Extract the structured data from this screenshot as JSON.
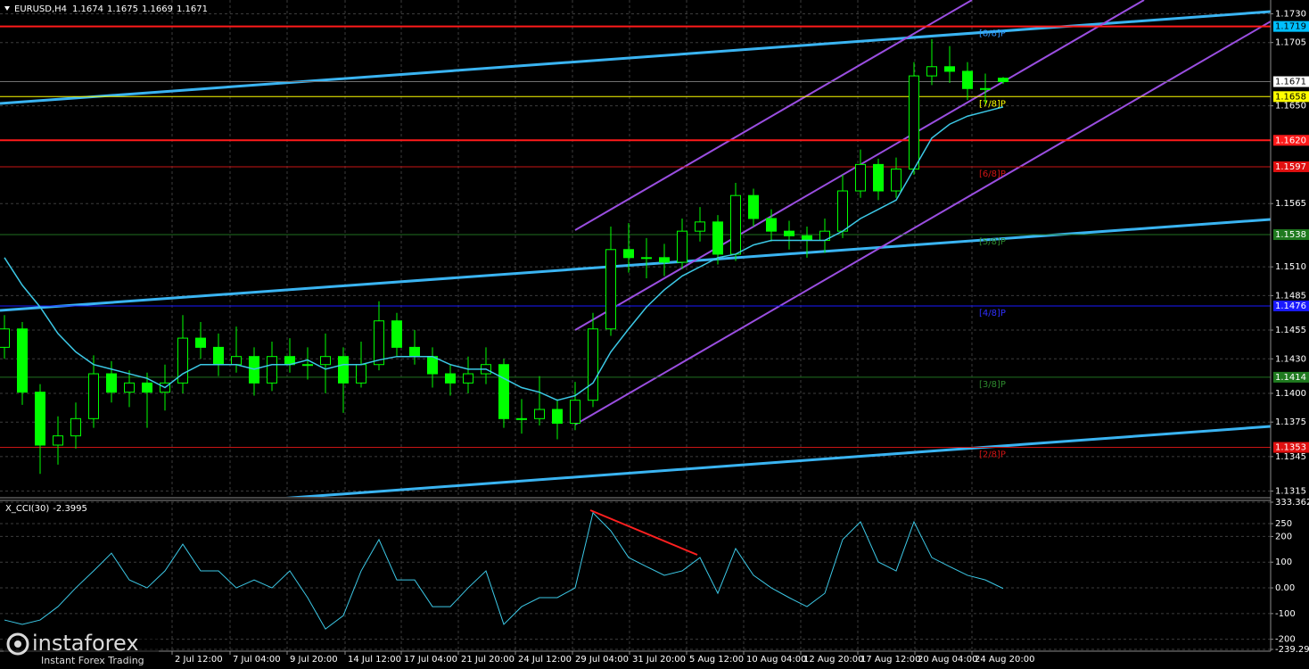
{
  "chart_data": [
    {
      "type": "candlestick",
      "title": "EURUSD,H4",
      "header_values": [
        1.1674,
        1.1675,
        1.1669,
        1.1671
      ],
      "xlim": [
        -0.25,
        71
      ],
      "ylim": [
        1.131,
        1.1742
      ],
      "yticks": [
        {
          "value": 1.173,
          "label": "1.1730"
        },
        1.1705,
        {
          "value": 1.165,
          "label": "1.1650"
        },
        1.1565,
        {
          "value": 1.151,
          "label": "1.1510"
        },
        1.1485,
        1.1455,
        {
          "value": 1.143,
          "label": "1.1430"
        },
        {
          "value": 1.14,
          "label": "1.1400"
        },
        1.1375,
        1.1345,
        1.1315
      ],
      "grid": true,
      "color": "#00ff00",
      "open": [
        1.144,
        1.1456,
        1.1401,
        1.1355,
        1.1363,
        1.1378,
        1.1417,
        1.1401,
        1.1409,
        1.1401,
        1.1409,
        1.1448,
        1.144,
        1.1425,
        1.1432,
        1.1409,
        1.1432,
        1.1425,
        1.1425,
        1.1432,
        1.1409,
        1.1425,
        1.1463,
        1.144,
        1.1432,
        1.1417,
        1.1409,
        1.1417,
        1.1425,
        1.1378,
        1.1378,
        1.1386,
        1.1374,
        1.1394,
        1.1456,
        1.1525,
        1.1518,
        1.1518,
        1.1514,
        1.1541,
        1.1549,
        1.1521,
        1.1572,
        1.1552,
        1.1541,
        1.1537,
        1.1533,
        1.1541,
        1.1576,
        1.1599,
        1.1576,
        1.1595,
        1.1676,
        1.1684,
        1.168,
        1.1665,
        1.1674
      ],
      "high": [
        1.1468,
        1.1462,
        1.1408,
        1.138,
        1.1392,
        1.1433,
        1.1428,
        1.142,
        1.1418,
        1.1425,
        1.1468,
        1.1462,
        1.1452,
        1.1458,
        1.144,
        1.1445,
        1.1448,
        1.144,
        1.1452,
        1.144,
        1.1445,
        1.148,
        1.147,
        1.1455,
        1.144,
        1.1425,
        1.1432,
        1.144,
        1.143,
        1.1395,
        1.1415,
        1.1395,
        1.141,
        1.147,
        1.1545,
        1.1548,
        1.1535,
        1.153,
        1.1552,
        1.1562,
        1.1555,
        1.1583,
        1.1578,
        1.156,
        1.155,
        1.1545,
        1.1552,
        1.159,
        1.1612,
        1.1604,
        1.1605,
        1.1688,
        1.1708,
        1.1702,
        1.1688,
        1.1678,
        1.1675
      ],
      "low": [
        1.143,
        1.139,
        1.133,
        1.1338,
        1.1352,
        1.137,
        1.1392,
        1.1388,
        1.137,
        1.1385,
        1.14,
        1.143,
        1.1415,
        1.1418,
        1.1398,
        1.1402,
        1.1418,
        1.1412,
        1.14,
        1.1383,
        1.1405,
        1.142,
        1.1432,
        1.1425,
        1.1405,
        1.1398,
        1.14,
        1.1408,
        1.137,
        1.1365,
        1.1372,
        1.136,
        1.1368,
        1.1388,
        1.145,
        1.1505,
        1.15,
        1.1502,
        1.1508,
        1.1532,
        1.1512,
        1.1515,
        1.1545,
        1.1532,
        1.1525,
        1.1518,
        1.1522,
        1.1535,
        1.157,
        1.1568,
        1.157,
        1.159,
        1.1668,
        1.167,
        1.1655,
        1.1652,
        1.1669
      ],
      "close": [
        1.1456,
        1.1401,
        1.1355,
        1.1363,
        1.1378,
        1.1417,
        1.1401,
        1.1409,
        1.1401,
        1.1409,
        1.1448,
        1.144,
        1.1425,
        1.1432,
        1.1409,
        1.1432,
        1.1425,
        1.1425,
        1.1432,
        1.1409,
        1.1425,
        1.1463,
        1.144,
        1.1432,
        1.1417,
        1.1409,
        1.1417,
        1.1425,
        1.1378,
        1.1378,
        1.1386,
        1.1374,
        1.1394,
        1.1456,
        1.1525,
        1.1518,
        1.1518,
        1.1514,
        1.1541,
        1.1549,
        1.1521,
        1.1572,
        1.1552,
        1.1541,
        1.1537,
        1.1533,
        1.1541,
        1.1576,
        1.1599,
        1.1576,
        1.1595,
        1.1676,
        1.1684,
        1.168,
        1.1665,
        1.1665,
        1.1671
      ],
      "overlay_color": "#3cc8e6",
      "overlay_values": [
        1.1518,
        1.1494,
        1.1475,
        1.1452,
        1.1436,
        1.1425,
        1.1421,
        1.1417,
        1.1413,
        1.1405,
        1.1417,
        1.1425,
        1.1425,
        1.1425,
        1.1421,
        1.1425,
        1.1425,
        1.1429,
        1.1421,
        1.1425,
        1.1425,
        1.1429,
        1.1432,
        1.1432,
        1.1432,
        1.1425,
        1.1421,
        1.1421,
        1.1413,
        1.1405,
        1.1401,
        1.1394,
        1.1398,
        1.1409,
        1.1436,
        1.1456,
        1.1475,
        1.149,
        1.1502,
        1.151,
        1.1518,
        1.1521,
        1.1529,
        1.1533,
        1.1533,
        1.1533,
        1.1533,
        1.1541,
        1.1552,
        1.156,
        1.1568,
        1.1595,
        1.1622,
        1.1634,
        1.1641,
        1.1645,
        1.1649
      ],
      "levels": [
        {
          "value": 1.1719,
          "color": "#ff1a1a",
          "box": "#00bfff",
          "text_color": "#000000",
          "width": 2,
          "tag": "[8/8]P",
          "tag_color": "#3399ff"
        },
        {
          "value": 1.1671,
          "color": "#707070",
          "box": "#ffffff",
          "text_color": "#000000",
          "width": 1
        },
        {
          "value": 1.1658,
          "color": "#ffff00",
          "box": "#ffff00",
          "text_color": "#000000",
          "width": 1,
          "tag": "[7/8]P",
          "tag_color": "#ffff00"
        },
        {
          "value": 1.162,
          "label": "1.1620",
          "color": "#ff1a1a",
          "box": "#ff1a1a",
          "text_color": "#ffffff",
          "width": 2
        },
        {
          "value": 1.1597,
          "color": "#c81414",
          "box": "#e01010",
          "text_color": "#ffffff",
          "width": 1,
          "tag": "[6/8]P",
          "tag_color": "#d01414"
        },
        {
          "value": 1.1538,
          "color": "#1f6f1f",
          "box": "#1f7a1f",
          "text_color": "#ffffff",
          "width": 1,
          "tag": "[5/8]P",
          "tag_color": "#2e8b2e"
        },
        {
          "value": 1.1476,
          "color": "#1a1aff",
          "box": "#1a1aff",
          "text_color": "#ffffff",
          "width": 1,
          "tag": "[4/8]P",
          "tag_color": "#3030ff"
        },
        {
          "value": 1.1414,
          "color": "#1f6f1f",
          "box": "#1f7a1f",
          "text_color": "#ffffff",
          "width": 1,
          "tag": "[3/8]P",
          "tag_color": "#2e8b2e"
        },
        {
          "value": 1.1353,
          "color": "#c81414",
          "box": "#e01010",
          "text_color": "#ffffff",
          "width": 1,
          "tag": "[2/8]P",
          "tag_color": "#d01414"
        }
      ]
    },
    {
      "type": "line",
      "title": "X_CCI(30)",
      "xlim": [
        -0.25,
        71
      ],
      "ylim": [
        -239.299,
        333.3621
      ],
      "yticks": [
        333.3621,
        250,
        200,
        100,
        {
          "value": 0,
          "label": "0.00"
        },
        -100,
        -200,
        -239.299
      ],
      "xticks": [
        {
          "value": 9.4,
          "label": "2 Jul 12:00"
        },
        {
          "value": 12.65,
          "label": "7 Jul 04:00"
        },
        {
          "value": 15.85,
          "label": "9 Jul 20:00"
        },
        {
          "value": 19.1,
          "label": "14 Jul 12:00"
        },
        {
          "value": 22.25,
          "label": "17 Jul 04:00"
        },
        {
          "value": 25.45,
          "label": "21 Jul 20:00"
        },
        {
          "value": 28.65,
          "label": "24 Jul 12:00"
        },
        {
          "value": 31.85,
          "label": "29 Jul 04:00"
        },
        {
          "value": 35.05,
          "label": "31 Jul 20:00"
        },
        {
          "value": 38.25,
          "label": "5 Aug 12:00"
        },
        {
          "value": 41.45,
          "label": "10 Aug 04:00"
        },
        {
          "value": 44.65,
          "label": "12 Aug 20:00"
        },
        {
          "value": 47.85,
          "label": "17 Aug 12:00"
        },
        {
          "value": 51.05,
          "label": "20 Aug 04:00"
        },
        {
          "value": 54.25,
          "label": "24 Aug 20:00"
        }
      ],
      "grid": true,
      "series": [
        {
          "color": "#3cc8e6",
          "values": [
            -125,
            -142,
            -125,
            -73,
            0,
            66,
            135,
            31,
            0,
            66,
            170,
            66,
            66,
            0,
            31,
            0,
            66,
            -38,
            -160,
            -108,
            66,
            188,
            31,
            31,
            -73,
            -73,
            0,
            66,
            -142,
            -73,
            -38,
            -38,
            0,
            292,
            222,
            118,
            83,
            49,
            66,
            118,
            -21,
            153,
            49,
            0,
            -38,
            -73,
            -21,
            188,
            257,
            101,
            66,
            257,
            118,
            83,
            49,
            31,
            -2.3995
          ]
        }
      ]
    }
  ],
  "watermark": {
    "brand": "instaforex",
    "tagline": "Instant Forex Trading"
  }
}
